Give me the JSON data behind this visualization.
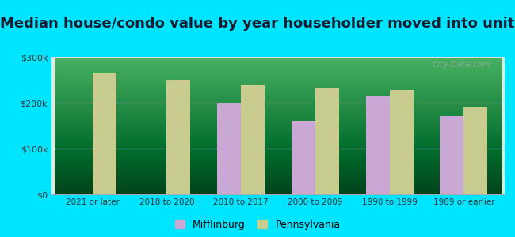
{
  "title": "Median house/condo value by year householder moved into unit",
  "categories": [
    "2021 or later",
    "2018 to 2020",
    "2010 to 2017",
    "2000 to 2009",
    "1990 to 1999",
    "1989 or earlier"
  ],
  "mifflinburg": [
    null,
    null,
    200000,
    160000,
    215000,
    170000
  ],
  "pennsylvania": [
    265000,
    250000,
    240000,
    232000,
    228000,
    190000
  ],
  "mifflinburg_color": "#c9a8d4",
  "pennsylvania_color": "#c8cc8e",
  "background_outer": "#00e5ff",
  "ylim": [
    0,
    300000
  ],
  "yticks": [
    0,
    100000,
    200000,
    300000
  ],
  "ytick_labels": [
    "$0",
    "$100k",
    "$200k",
    "$300k"
  ],
  "legend_mifflinburg": "Mifflinburg",
  "legend_pennsylvania": "Pennsylvania",
  "watermark": "City-Data.com",
  "bar_width": 0.32,
  "title_fontsize": 13
}
